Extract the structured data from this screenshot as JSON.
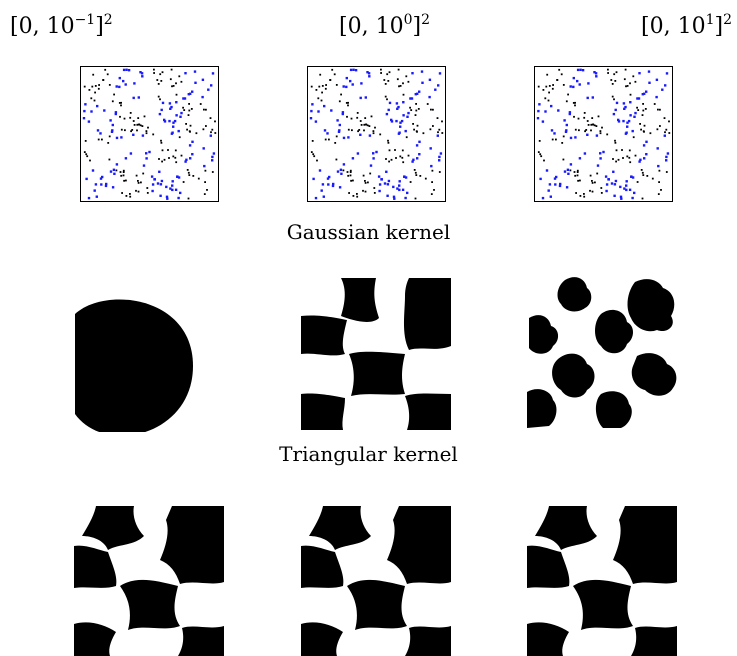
{
  "columns": [
    {
      "base": "[0, 10",
      "exp": "−1",
      "close": "]",
      "pow": "2"
    },
    {
      "base": "[0, 10",
      "exp": "0",
      "close": "]",
      "pow": "2"
    },
    {
      "base": "[0, 10",
      "exp": "1",
      "close": "]",
      "pow": "2"
    }
  ],
  "rows": {
    "gaussian_label": "Gaussian kernel",
    "triangular_label": "Triangular kernel"
  },
  "colors": {
    "class_a": "#000000",
    "class_b": "#1a1aff",
    "region": "#000000",
    "background": "#ffffff"
  }
}
